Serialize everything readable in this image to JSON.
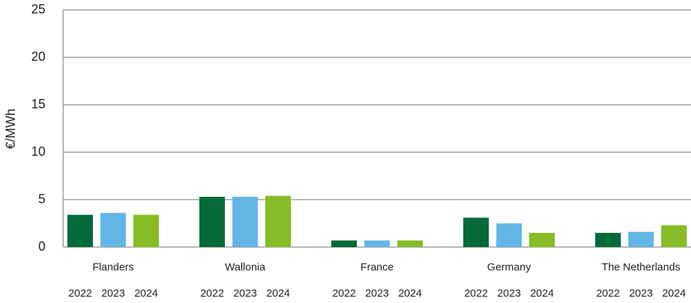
{
  "chart_data": {
    "type": "bar",
    "y_label": "€/MWh",
    "categories": [
      "Flanders",
      "Wallonia",
      "France",
      "Germany",
      "The Netherlands"
    ],
    "series": [
      {
        "name": "2022",
        "color": "#046a38",
        "values": [
          3.4,
          5.3,
          0.7,
          3.1,
          1.5
        ]
      },
      {
        "name": "2023",
        "color": "#62b5e5",
        "values": [
          3.6,
          5.3,
          0.7,
          2.5,
          1.6
        ]
      },
      {
        "name": "2024",
        "color": "#86bc25",
        "values": [
          3.4,
          5.4,
          0.7,
          1.5,
          2.3
        ]
      }
    ],
    "ylim": [
      0,
      25
    ],
    "yticks": [
      0,
      5,
      10,
      15,
      20,
      25
    ],
    "grid": true
  }
}
